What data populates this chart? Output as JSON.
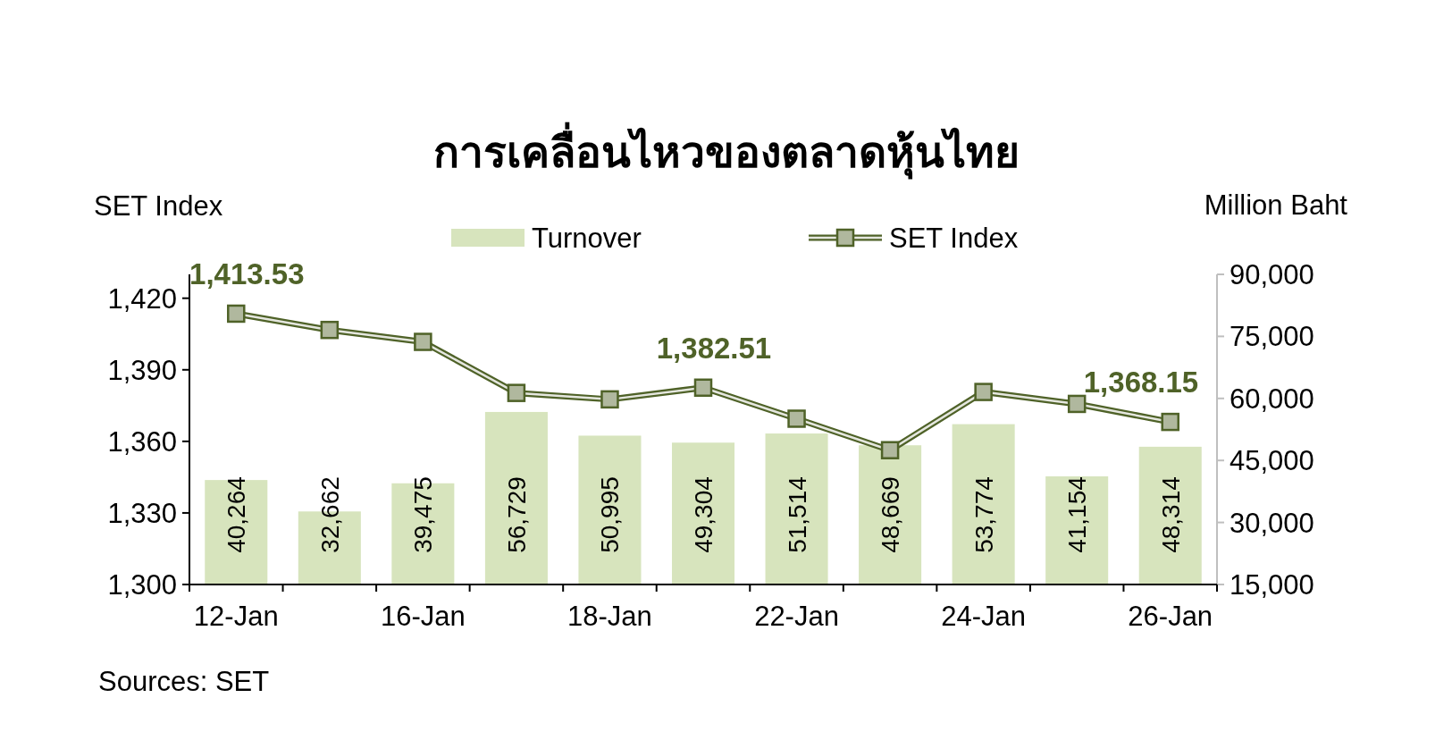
{
  "chart_data": {
    "type": "bar",
    "title": "การเคลื่อนไหวของตลาดหุ้นไทย",
    "ylabel": "SET Index",
    "y2label": "Million Baht",
    "annotations": [
      "Sources: SET"
    ],
    "categories": [
      "12-Jan",
      null,
      "16-Jan",
      null,
      "18-Jan",
      null,
      "22-Jan",
      null,
      "24-Jan",
      null,
      "26-Jan"
    ],
    "series": [
      {
        "name": "Turnover",
        "axis": "y2",
        "color": "#d7e4bd",
        "values": [
          40264,
          32662,
          39475,
          56729,
          50995,
          49304,
          51514,
          48669,
          53774,
          41154,
          48314
        ],
        "value_labels": [
          "40,264",
          "32,662",
          "39,475",
          "56,729",
          "50,995",
          "49,304",
          "51,514",
          "48,669",
          "53,774",
          "41,154",
          "48,314"
        ]
      },
      {
        "name": "SET Index",
        "type": "line",
        "color": "#4f6228",
        "values": [
          1413.53,
          1406.7,
          1401.7,
          1380.3,
          1377.6,
          1382.51,
          1369.5,
          1356.3,
          1380.7,
          1375.7,
          1368.15
        ],
        "value_labels": [
          "1,413.53",
          null,
          null,
          null,
          null,
          "1,382.51",
          null,
          null,
          null,
          null,
          "1,368.15"
        ]
      }
    ],
    "ylim": [
      1300,
      1430
    ],
    "yticks": [
      {
        "value": 1300,
        "label": "1,300"
      },
      {
        "value": 1330,
        "label": "1,330"
      },
      {
        "value": 1360,
        "label": "1,360"
      },
      {
        "value": 1390,
        "label": "1,390"
      },
      {
        "value": 1420,
        "label": "1,420"
      }
    ],
    "y2lim": [
      15000,
      90000
    ],
    "y2ticks": [
      {
        "value": 15000,
        "label": "15,000"
      },
      {
        "value": 30000,
        "label": "30,000"
      },
      {
        "value": 45000,
        "label": "45,000"
      },
      {
        "value": 60000,
        "label": "60,000"
      },
      {
        "value": 75000,
        "label": "75,000"
      },
      {
        "value": 90000,
        "label": "90,000"
      }
    ],
    "legend": "top",
    "marker": "square",
    "grid": false
  }
}
